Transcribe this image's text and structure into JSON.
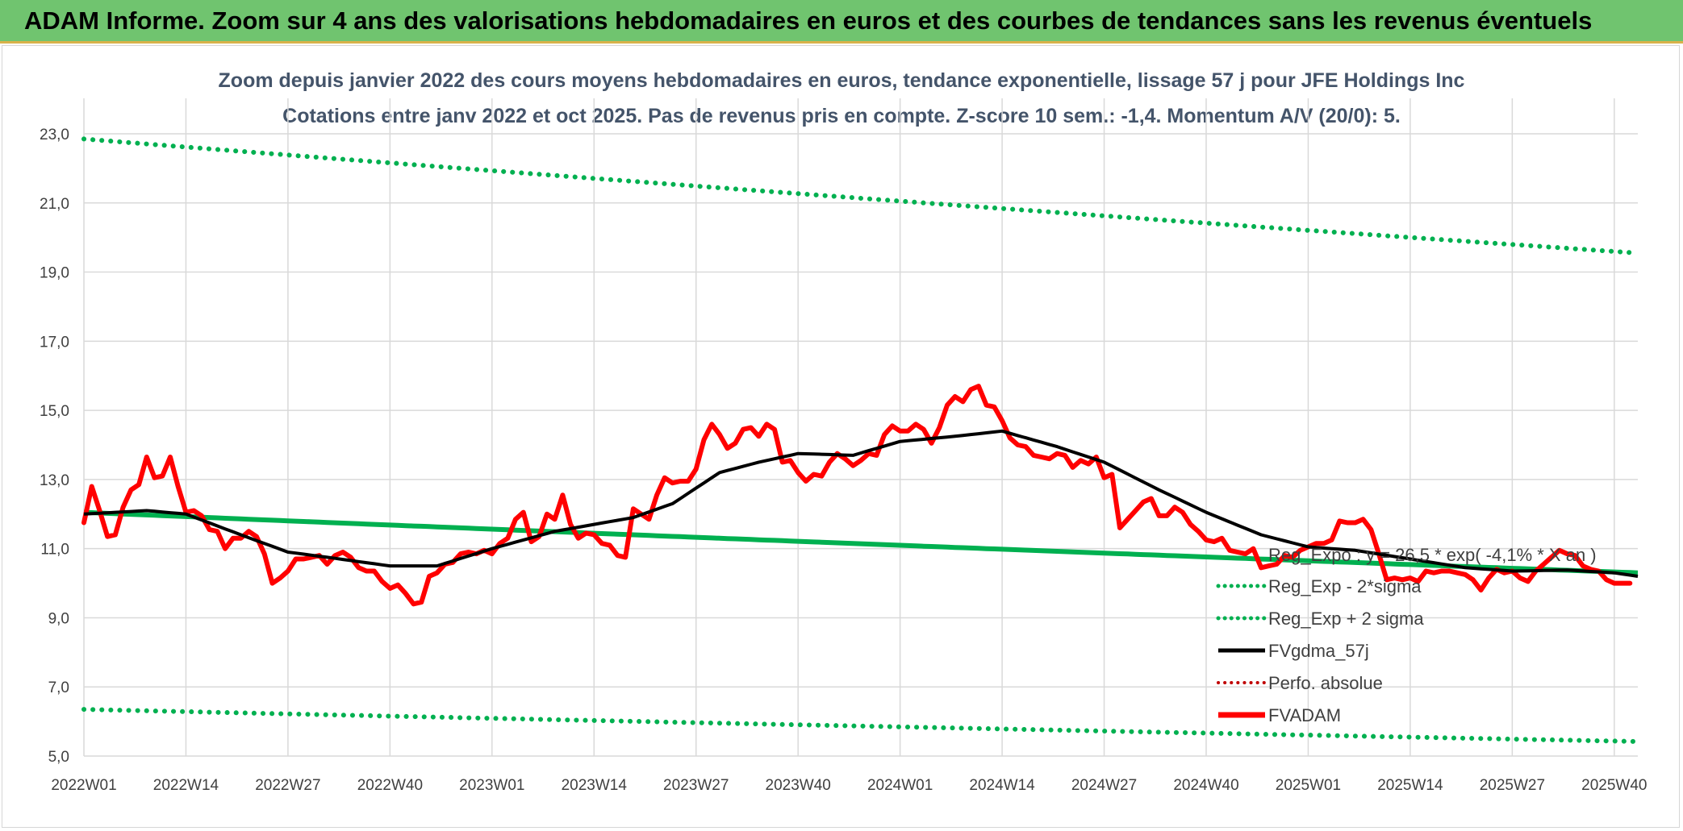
{
  "header": {
    "title": "ADAM Informe. Zoom sur 4 ans des valorisations hebdomadaires en euros et des courbes de tendances sans les revenus éventuels"
  },
  "chart_data": {
    "type": "line",
    "title": "Zoom depuis janvier 2022 des cours moyens hebdomadaires en euros, tendance exponentielle, lissage 57 j pour JFE Holdings Inc",
    "subtitle": "Cotations entre janv 2022 et oct 2025. Pas de revenus pris en compte. Z-score 10 sem.: -1,4. Momentum A/V (20/0): 5.",
    "xlabel": "",
    "ylabel": "",
    "ylim": [
      5,
      23.5
    ],
    "yticks": [
      "5,0",
      "7,0",
      "9,0",
      "11,0",
      "13,0",
      "15,0",
      "17,0",
      "19,0",
      "21,0",
      "23,0"
    ],
    "ytick_values": [
      5,
      7,
      9,
      11,
      13,
      15,
      17,
      19,
      21,
      23
    ],
    "x_count": 199,
    "xticks": [
      "2022W01",
      "2022W14",
      "2022W27",
      "2022W40",
      "2023W01",
      "2023W14",
      "2023W27",
      "2023W40",
      "2024W01",
      "2024W14",
      "2024W27",
      "2024W40",
      "2025W01",
      "2025W14",
      "2025W27",
      "2025W40"
    ],
    "xtick_index": [
      0,
      13,
      26,
      39,
      52,
      65,
      78,
      91,
      104,
      117,
      130,
      143,
      156,
      169,
      182,
      195
    ],
    "grid": true,
    "legend_position": "bottom-right",
    "series": [
      {
        "name": "Reg_Expo : y = 26,5 * exp( -4,1% * X an )",
        "color": "#00b050",
        "style": "solid",
        "start": 12.05,
        "end": 10.3
      },
      {
        "name": "Reg_Exp - 2*sigma",
        "color": "#00b050",
        "style": "dotted",
        "start": 6.35,
        "end": 5.42
      },
      {
        "name": "Reg_Exp + 2 sigma",
        "color": "#00b050",
        "style": "dotted",
        "start": 22.85,
        "end": 19.55
      },
      {
        "name": "FVgdma_57j",
        "color": "#000000",
        "style": "solid",
        "points": [
          [
            0,
            12.0
          ],
          [
            8,
            12.1
          ],
          [
            13,
            12.0
          ],
          [
            20,
            11.4
          ],
          [
            26,
            10.9
          ],
          [
            31,
            10.75
          ],
          [
            39,
            10.5
          ],
          [
            45,
            10.5
          ],
          [
            52,
            11.0
          ],
          [
            60,
            11.5
          ],
          [
            65,
            11.7
          ],
          [
            70,
            11.9
          ],
          [
            75,
            12.3
          ],
          [
            81,
            13.2
          ],
          [
            86,
            13.5
          ],
          [
            91,
            13.75
          ],
          [
            98,
            13.7
          ],
          [
            104,
            14.1
          ],
          [
            111,
            14.25
          ],
          [
            117,
            14.4
          ],
          [
            124,
            13.95
          ],
          [
            130,
            13.5
          ],
          [
            137,
            12.7
          ],
          [
            143,
            12.05
          ],
          [
            150,
            11.4
          ],
          [
            156,
            11.05
          ],
          [
            162,
            10.95
          ],
          [
            169,
            10.7
          ],
          [
            176,
            10.45
          ],
          [
            182,
            10.35
          ],
          [
            189,
            10.38
          ],
          [
            195,
            10.3
          ],
          [
            198,
            10.2
          ]
        ]
      },
      {
        "name": "Perfo. absolue",
        "color": "#c00000",
        "style": "dotted"
      },
      {
        "name": "FVADAM",
        "color": "#ff0000",
        "style": "solid",
        "points": [
          [
            0,
            11.75
          ],
          [
            1,
            12.8
          ],
          [
            2,
            12.1
          ],
          [
            3,
            11.35
          ],
          [
            4,
            11.4
          ],
          [
            5,
            12.2
          ],
          [
            6,
            12.7
          ],
          [
            7,
            12.85
          ],
          [
            8,
            13.65
          ],
          [
            9,
            13.05
          ],
          [
            10,
            13.1
          ],
          [
            11,
            13.65
          ],
          [
            12,
            12.8
          ],
          [
            13,
            12.05
          ],
          [
            14,
            12.1
          ],
          [
            15,
            11.95
          ],
          [
            16,
            11.55
          ],
          [
            17,
            11.5
          ],
          [
            18,
            11.0
          ],
          [
            19,
            11.3
          ],
          [
            20,
            11.3
          ],
          [
            21,
            11.5
          ],
          [
            22,
            11.35
          ],
          [
            23,
            10.85
          ],
          [
            24,
            10.0
          ],
          [
            25,
            10.15
          ],
          [
            26,
            10.35
          ],
          [
            27,
            10.7
          ],
          [
            28,
            10.7
          ],
          [
            29,
            10.75
          ],
          [
            30,
            10.8
          ],
          [
            31,
            10.55
          ],
          [
            32,
            10.8
          ],
          [
            33,
            10.9
          ],
          [
            34,
            10.75
          ],
          [
            35,
            10.45
          ],
          [
            36,
            10.35
          ],
          [
            37,
            10.35
          ],
          [
            38,
            10.05
          ],
          [
            39,
            9.85
          ],
          [
            40,
            9.95
          ],
          [
            41,
            9.7
          ],
          [
            42,
            9.4
          ],
          [
            43,
            9.45
          ],
          [
            44,
            10.2
          ],
          [
            45,
            10.3
          ],
          [
            46,
            10.55
          ],
          [
            47,
            10.6
          ],
          [
            48,
            10.85
          ],
          [
            49,
            10.9
          ],
          [
            50,
            10.85
          ],
          [
            51,
            10.95
          ],
          [
            52,
            10.85
          ],
          [
            53,
            11.15
          ],
          [
            54,
            11.3
          ],
          [
            55,
            11.85
          ],
          [
            56,
            12.05
          ],
          [
            57,
            11.2
          ],
          [
            58,
            11.35
          ],
          [
            59,
            12.0
          ],
          [
            60,
            11.85
          ],
          [
            61,
            12.55
          ],
          [
            62,
            11.7
          ],
          [
            63,
            11.3
          ],
          [
            64,
            11.45
          ],
          [
            65,
            11.4
          ],
          [
            66,
            11.15
          ],
          [
            67,
            11.1
          ],
          [
            68,
            10.8
          ],
          [
            69,
            10.75
          ],
          [
            70,
            12.15
          ],
          [
            71,
            12.0
          ],
          [
            72,
            11.85
          ],
          [
            73,
            12.55
          ],
          [
            74,
            13.05
          ],
          [
            75,
            12.9
          ],
          [
            76,
            12.95
          ],
          [
            77,
            12.95
          ],
          [
            78,
            13.3
          ],
          [
            79,
            14.15
          ],
          [
            80,
            14.6
          ],
          [
            81,
            14.3
          ],
          [
            82,
            13.9
          ],
          [
            83,
            14.05
          ],
          [
            84,
            14.45
          ],
          [
            85,
            14.5
          ],
          [
            86,
            14.25
          ],
          [
            87,
            14.6
          ],
          [
            88,
            14.45
          ],
          [
            89,
            13.5
          ],
          [
            90,
            13.55
          ],
          [
            91,
            13.2
          ],
          [
            92,
            12.95
          ],
          [
            93,
            13.15
          ],
          [
            94,
            13.1
          ],
          [
            95,
            13.5
          ],
          [
            96,
            13.75
          ],
          [
            97,
            13.6
          ],
          [
            98,
            13.4
          ],
          [
            99,
            13.55
          ],
          [
            100,
            13.75
          ],
          [
            101,
            13.7
          ],
          [
            102,
            14.3
          ],
          [
            103,
            14.55
          ],
          [
            104,
            14.4
          ],
          [
            105,
            14.4
          ],
          [
            106,
            14.6
          ],
          [
            107,
            14.45
          ],
          [
            108,
            14.05
          ],
          [
            109,
            14.5
          ],
          [
            110,
            15.15
          ],
          [
            111,
            15.4
          ],
          [
            112,
            15.25
          ],
          [
            113,
            15.6
          ],
          [
            114,
            15.7
          ],
          [
            115,
            15.15
          ],
          [
            116,
            15.1
          ],
          [
            117,
            14.7
          ],
          [
            118,
            14.2
          ],
          [
            119,
            14.0
          ],
          [
            120,
            13.95
          ],
          [
            121,
            13.7
          ],
          [
            122,
            13.65
          ],
          [
            123,
            13.6
          ],
          [
            124,
            13.75
          ],
          [
            125,
            13.7
          ],
          [
            126,
            13.35
          ],
          [
            127,
            13.55
          ],
          [
            128,
            13.45
          ],
          [
            129,
            13.65
          ],
          [
            130,
            13.05
          ],
          [
            131,
            13.15
          ],
          [
            132,
            11.6
          ],
          [
            133,
            11.85
          ],
          [
            134,
            12.1
          ],
          [
            135,
            12.35
          ],
          [
            136,
            12.45
          ],
          [
            137,
            11.95
          ],
          [
            138,
            11.95
          ],
          [
            139,
            12.2
          ],
          [
            140,
            12.05
          ],
          [
            141,
            11.7
          ],
          [
            142,
            11.5
          ],
          [
            143,
            11.25
          ],
          [
            144,
            11.2
          ],
          [
            145,
            11.3
          ],
          [
            146,
            10.95
          ],
          [
            147,
            10.9
          ],
          [
            148,
            10.85
          ],
          [
            149,
            11.0
          ],
          [
            150,
            10.45
          ],
          [
            151,
            10.5
          ],
          [
            152,
            10.55
          ],
          [
            153,
            10.8
          ],
          [
            154,
            10.75
          ],
          [
            155,
            10.95
          ],
          [
            156,
            11.05
          ],
          [
            157,
            11.15
          ],
          [
            158,
            11.15
          ],
          [
            159,
            11.25
          ],
          [
            160,
            11.8
          ],
          [
            161,
            11.75
          ],
          [
            162,
            11.75
          ],
          [
            163,
            11.85
          ],
          [
            164,
            11.55
          ],
          [
            165,
            10.85
          ],
          [
            166,
            10.1
          ],
          [
            167,
            10.15
          ],
          [
            168,
            10.1
          ],
          [
            169,
            10.15
          ],
          [
            170,
            10.05
          ],
          [
            171,
            10.35
          ],
          [
            172,
            10.3
          ],
          [
            173,
            10.35
          ],
          [
            174,
            10.35
          ],
          [
            175,
            10.3
          ],
          [
            176,
            10.25
          ],
          [
            177,
            10.1
          ],
          [
            178,
            9.8
          ],
          [
            179,
            10.15
          ],
          [
            180,
            10.4
          ],
          [
            181,
            10.3
          ],
          [
            182,
            10.35
          ],
          [
            183,
            10.15
          ],
          [
            184,
            10.05
          ],
          [
            185,
            10.35
          ],
          [
            186,
            10.55
          ],
          [
            187,
            10.75
          ],
          [
            188,
            10.95
          ],
          [
            189,
            10.85
          ],
          [
            190,
            10.8
          ],
          [
            191,
            10.5
          ],
          [
            192,
            10.4
          ],
          [
            193,
            10.35
          ],
          [
            194,
            10.1
          ],
          [
            195,
            10.0
          ],
          [
            196,
            10.0
          ],
          [
            197,
            10.0
          ]
        ]
      }
    ]
  }
}
